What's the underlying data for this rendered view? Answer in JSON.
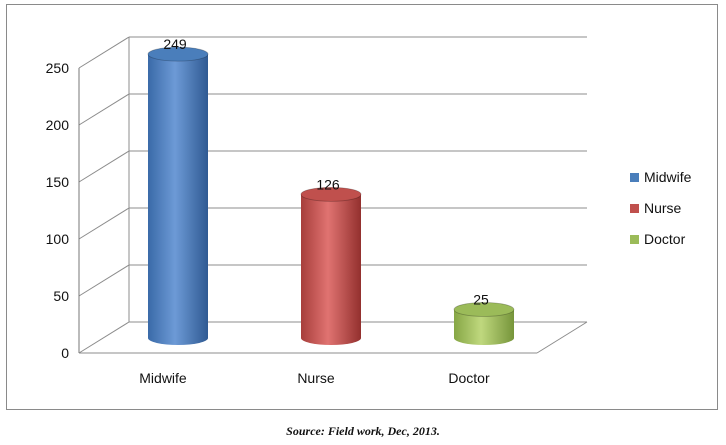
{
  "chart_data": {
    "type": "bar",
    "style": "3d-cylinder",
    "categories": [
      "Midwife",
      "Nurse",
      "Doctor"
    ],
    "values": [
      249,
      126,
      25
    ],
    "data_labels": [
      "249",
      "126",
      "25"
    ],
    "colors": [
      "#4a7ebb",
      "#c0504d",
      "#9bbb59"
    ],
    "ylim": [
      0,
      250
    ],
    "yticks": [
      0,
      50,
      100,
      150,
      200,
      250
    ],
    "grid": true,
    "legend": {
      "position": "right",
      "entries": [
        "Midwife",
        "Nurse",
        "Doctor"
      ]
    }
  },
  "source_note": "Source: Field work, Dec, 2013."
}
